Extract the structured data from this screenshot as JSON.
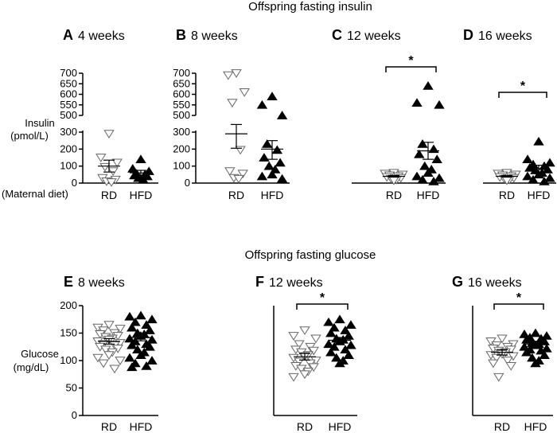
{
  "figure": {
    "section_insulin_title": "Offspring fasting insulin",
    "section_glucose_title": "Offspring fasting glucose",
    "insulin_ylabel_line1": "Insulin",
    "insulin_ylabel_line2": "(pmol/L)",
    "glucose_ylabel_line1": "Glucose",
    "glucose_ylabel_line2": "(mg/dL)",
    "maternal_diet_label": "(Maternal diet)"
  },
  "chart_data": [
    {
      "type": "scatter",
      "panel": "A",
      "title": "4 weeks",
      "categories": [
        "RD",
        "HFD"
      ],
      "y_axis_lower": {
        "range": [
          0,
          300
        ],
        "ticks": [
          0,
          100,
          200,
          300
        ]
      },
      "y_axis_upper": {
        "range": [
          500,
          700
        ],
        "ticks": [
          500,
          550,
          600,
          650,
          700
        ]
      },
      "axis_break": true,
      "series": [
        {
          "category": "RD",
          "marker": "open-down-triangle",
          "values": [
            290,
            150,
            120,
            95,
            70,
            30,
            20,
            10,
            5
          ],
          "mean": 100,
          "sem_low": 65,
          "sem_high": 135
        },
        {
          "category": "HFD",
          "marker": "filled-up-triangle",
          "values": [
            140,
            85,
            70,
            55,
            50,
            45,
            40,
            30,
            20
          ],
          "mean": 60,
          "sem_low": 45,
          "sem_high": 75
        }
      ],
      "significance": null
    },
    {
      "type": "scatter",
      "panel": "B",
      "title": "8 weeks",
      "categories": [
        "RD",
        "HFD"
      ],
      "y_axis_lower": {
        "range": [
          0,
          300
        ],
        "ticks": [
          0,
          100,
          200,
          300
        ]
      },
      "y_axis_upper": {
        "range": [
          500,
          700
        ],
        "ticks": [
          500,
          550,
          600,
          650,
          700
        ]
      },
      "axis_break": true,
      "series": [
        {
          "category": "RD",
          "marker": "open-down-triangle",
          "values": [
            700,
            690,
            610,
            560,
            195,
            70,
            55,
            30,
            25
          ],
          "mean": 290,
          "sem_low": 205,
          "sem_high": 345
        },
        {
          "category": "HFD",
          "marker": "filled-up-triangle",
          "values": [
            590,
            550,
            500,
            230,
            195,
            150,
            120,
            100,
            80,
            50,
            40,
            25
          ],
          "mean": 200,
          "sem_low": 140,
          "sem_high": 250
        }
      ],
      "significance": null
    },
    {
      "type": "scatter",
      "panel": "C",
      "title": "12 weeks",
      "categories": [
        "RD",
        "HFD"
      ],
      "y_axis_lower": {
        "range": [
          0,
          300
        ],
        "ticks": []
      },
      "y_axis_upper": {
        "range": [
          500,
          700
        ],
        "ticks": []
      },
      "axis_break": false,
      "series": [
        {
          "category": "RD",
          "marker": "open-down-triangle",
          "values": [
            60,
            55,
            50,
            45,
            40,
            35,
            30,
            25,
            20,
            15
          ],
          "mean": 40,
          "sem_low": 35,
          "sem_high": 45
        },
        {
          "category": "HFD",
          "marker": "filled-up-triangle",
          "values": [
            640,
            560,
            550,
            230,
            200,
            170,
            140,
            100,
            80,
            60,
            40,
            30,
            20,
            10
          ],
          "mean": 190,
          "sem_low": 140,
          "sem_high": 240
        }
      ],
      "significance": {
        "between": [
          "RD",
          "HFD"
        ],
        "label": "*"
      }
    },
    {
      "type": "scatter",
      "panel": "D",
      "title": "16 weeks",
      "categories": [
        "RD",
        "HFD"
      ],
      "y_axis_lower": {
        "range": [
          0,
          300
        ],
        "ticks": []
      },
      "y_axis_upper": {
        "range": [
          500,
          700
        ],
        "ticks": []
      },
      "axis_break": false,
      "series": [
        {
          "category": "RD",
          "marker": "open-down-triangle",
          "values": [
            60,
            55,
            50,
            45,
            40,
            35,
            30,
            25,
            20,
            15
          ],
          "mean": 40,
          "sem_low": 35,
          "sem_high": 45
        },
        {
          "category": "HFD",
          "marker": "filled-up-triangle",
          "values": [
            245,
            140,
            120,
            110,
            100,
            90,
            80,
            75,
            60,
            50,
            40,
            30,
            20,
            10
          ],
          "mean": 85,
          "sem_low": 65,
          "sem_high": 105
        }
      ],
      "significance": {
        "between": [
          "RD",
          "HFD"
        ],
        "label": "*"
      }
    },
    {
      "type": "scatter",
      "panel": "E",
      "title": "8 weeks",
      "categories": [
        "RD",
        "HFD"
      ],
      "ylim": [
        0,
        200
      ],
      "yticks": [
        0,
        50,
        100,
        150,
        200
      ],
      "series": [
        {
          "category": "RD",
          "marker": "open-down-triangle",
          "values": [
            165,
            160,
            158,
            155,
            150,
            148,
            145,
            143,
            140,
            138,
            135,
            132,
            130,
            128,
            125,
            122,
            120,
            115,
            110,
            105,
            100,
            95,
            85
          ],
          "mean": 135,
          "sem_low": 130,
          "sem_high": 140
        },
        {
          "category": "HFD",
          "marker": "filled-up-triangle",
          "values": [
            182,
            180,
            175,
            170,
            165,
            160,
            155,
            150,
            148,
            145,
            140,
            138,
            135,
            130,
            128,
            125,
            120,
            115,
            110,
            105,
            100,
            95,
            90,
            88
          ],
          "mean": 142,
          "sem_low": 136,
          "sem_high": 148
        }
      ],
      "significance": null
    },
    {
      "type": "scatter",
      "panel": "F",
      "title": "12 weeks",
      "categories": [
        "RD",
        "HFD"
      ],
      "ylim": [
        0,
        200
      ],
      "yticks": [],
      "series": [
        {
          "category": "RD",
          "marker": "open-down-triangle",
          "values": [
            155,
            145,
            140,
            130,
            125,
            120,
            118,
            115,
            110,
            108,
            105,
            100,
            98,
            95,
            90,
            88,
            85,
            80,
            75,
            70
          ],
          "mean": 107,
          "sem_low": 101,
          "sem_high": 113
        },
        {
          "category": "HFD",
          "marker": "filled-up-triangle",
          "values": [
            175,
            170,
            165,
            160,
            155,
            150,
            145,
            140,
            138,
            135,
            130,
            128,
            125,
            120,
            115,
            110,
            105,
            100,
            95
          ],
          "mean": 137,
          "sem_low": 132,
          "sem_high": 142
        }
      ],
      "significance": {
        "between": [
          "RD",
          "HFD"
        ],
        "label": "*"
      }
    },
    {
      "type": "scatter",
      "panel": "G",
      "title": "16 weeks",
      "categories": [
        "RD",
        "HFD"
      ],
      "ylim": [
        0,
        200
      ],
      "yticks": [],
      "series": [
        {
          "category": "RD",
          "marker": "open-down-triangle",
          "values": [
            140,
            135,
            130,
            128,
            125,
            122,
            120,
            118,
            115,
            112,
            110,
            108,
            105,
            100,
            95,
            90,
            70
          ],
          "mean": 115,
          "sem_low": 110,
          "sem_high": 120
        },
        {
          "category": "HFD",
          "marker": "filled-up-triangle",
          "values": [
            150,
            148,
            145,
            142,
            140,
            138,
            135,
            132,
            130,
            128,
            125,
            122,
            120,
            118,
            115,
            110,
            105,
            100,
            95
          ],
          "mean": 130,
          "sem_low": 125,
          "sem_high": 135
        }
      ],
      "significance": {
        "between": [
          "RD",
          "HFD"
        ],
        "label": "*"
      }
    }
  ]
}
